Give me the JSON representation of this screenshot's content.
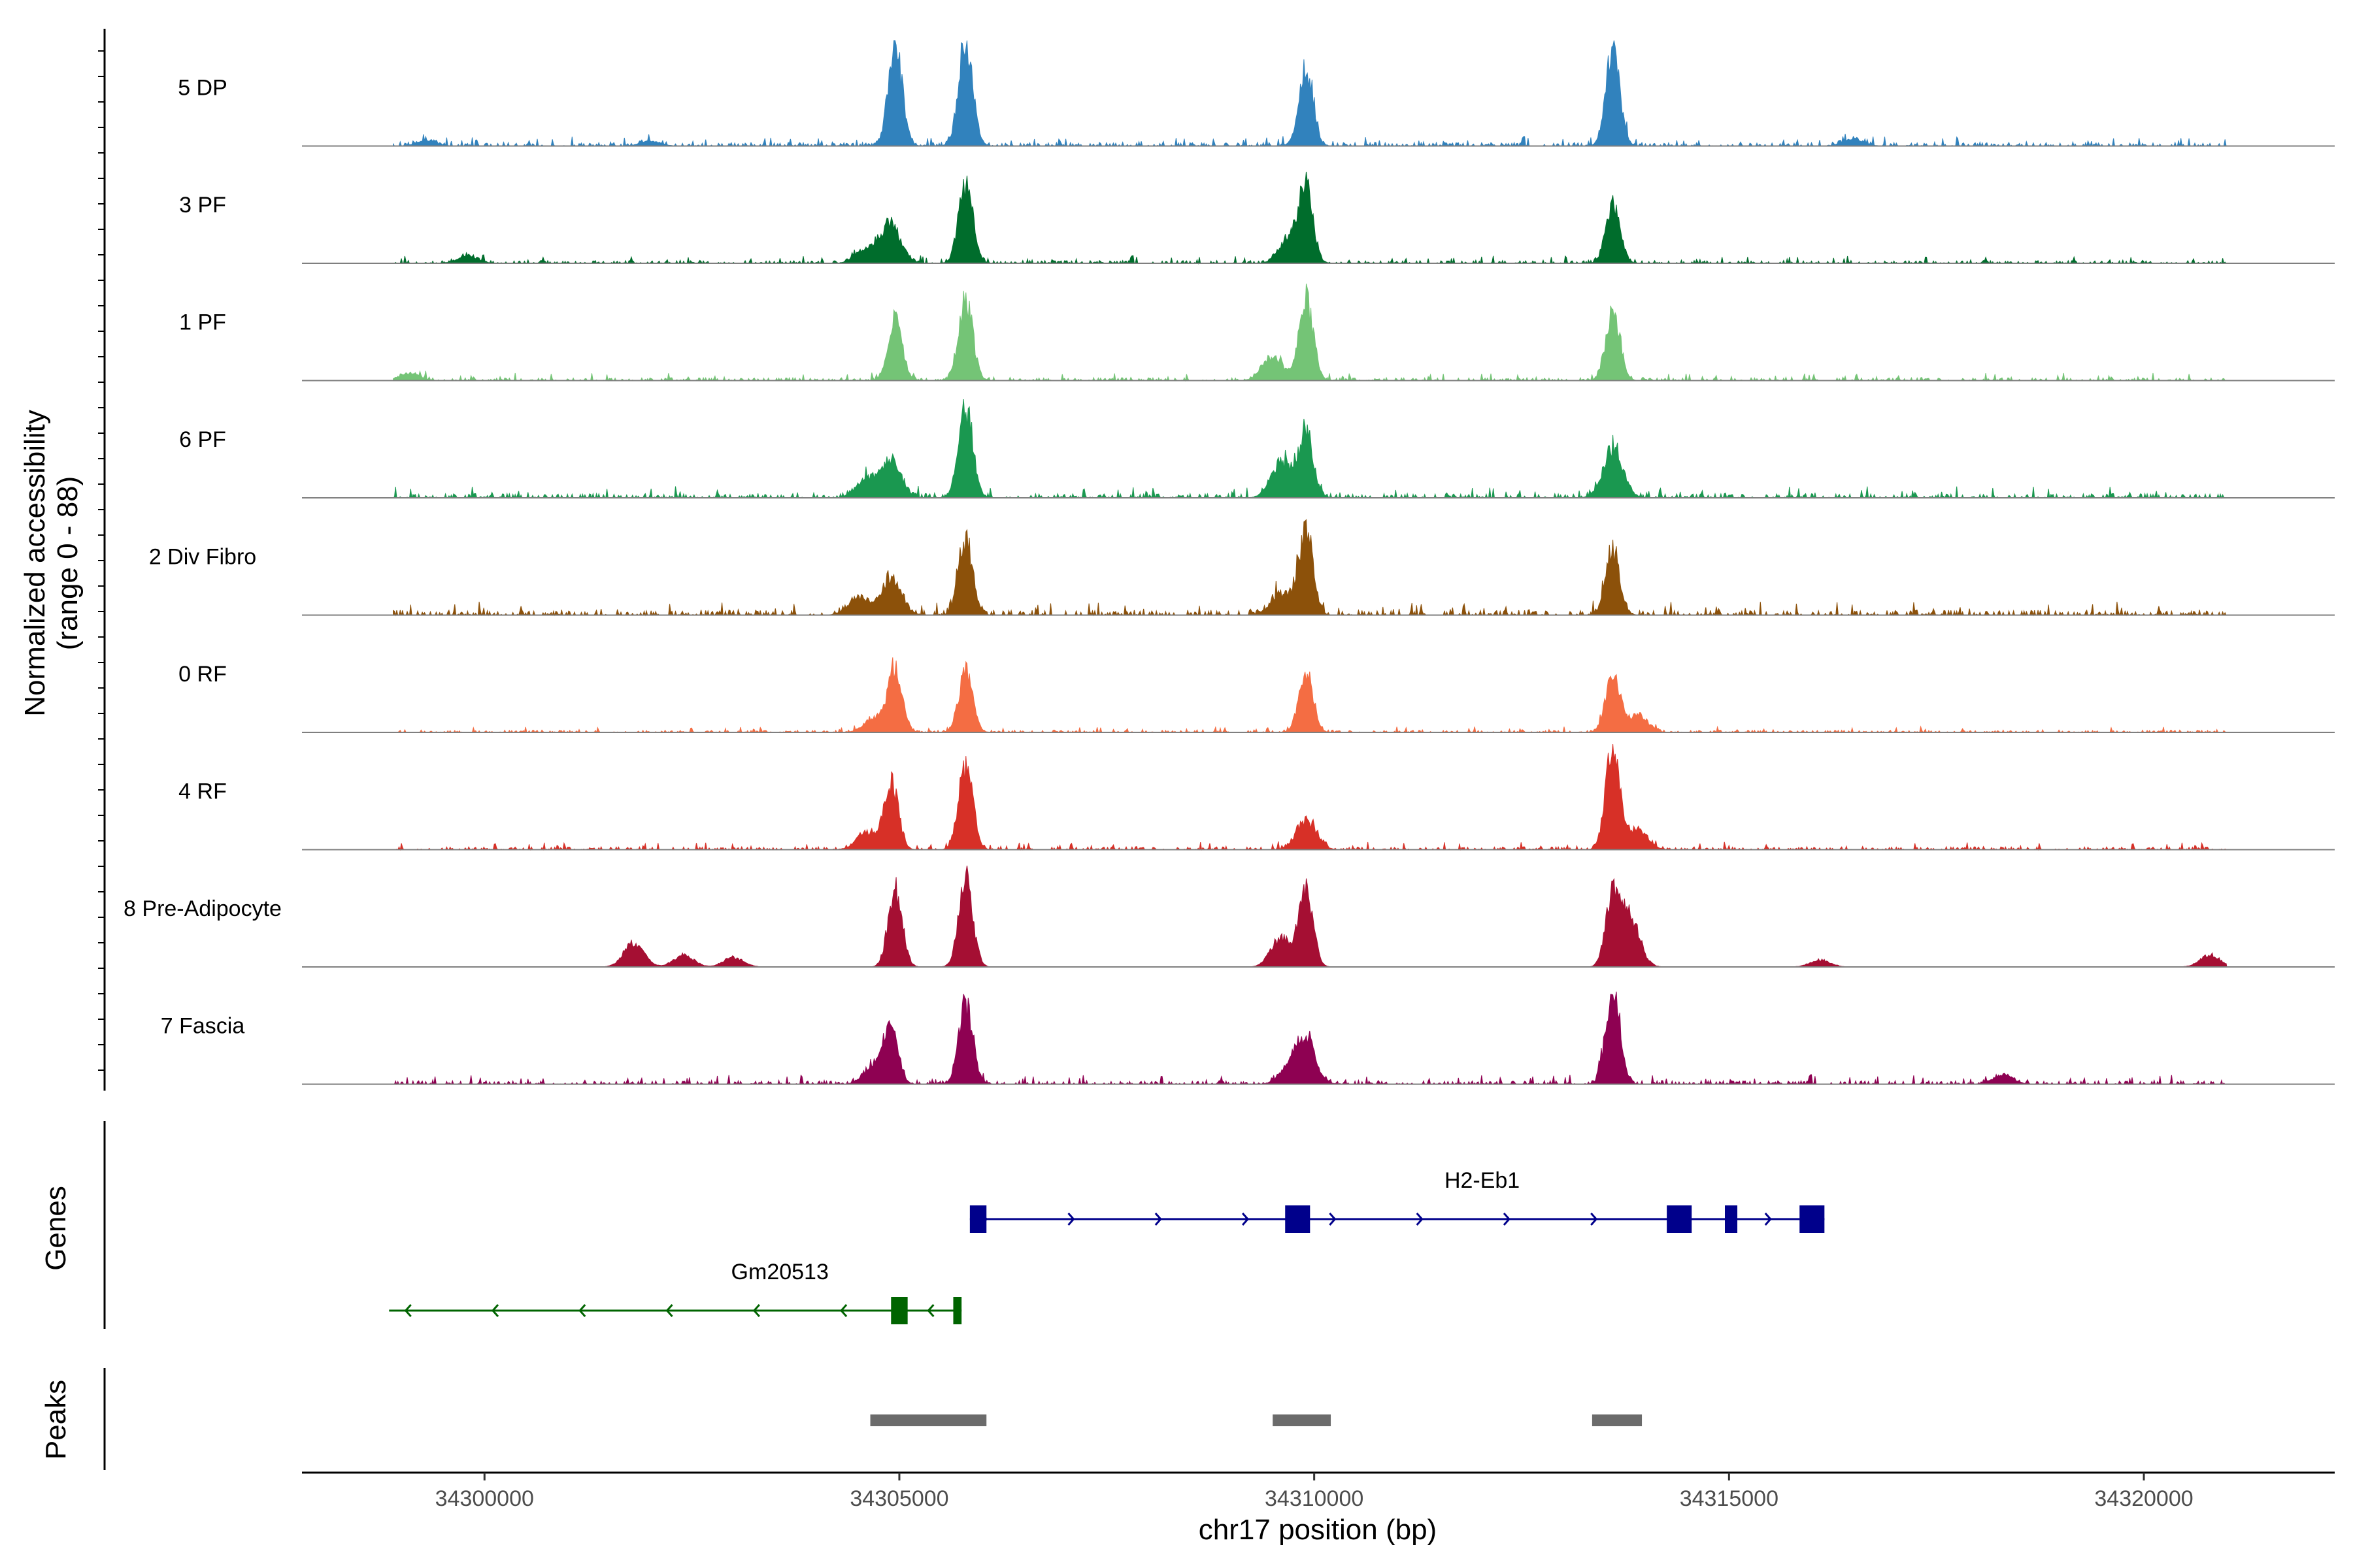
{
  "chart_data": {
    "type": "area",
    "title": "",
    "xlabel": "chr17 position (bp)",
    "ylabel_line1": "Normalized accessibility",
    "ylabel_line2": "(range 0 - 88)",
    "ylim": [
      0,
      88
    ],
    "xlim": [
      34297800,
      34322300
    ],
    "x_ticks": [
      34300000,
      34305000,
      34310000,
      34315000,
      34320000
    ],
    "x_tick_labels": [
      "34300000",
      "34305000",
      "34310000",
      "34315000",
      "34320000"
    ],
    "tracks": [
      {
        "name": "5 DP",
        "color": "#3182BD",
        "peaks": [
          [
            34304950,
            82
          ],
          [
            34305800,
            88
          ],
          [
            34309900,
            66
          ],
          [
            34313600,
            78
          ],
          [
            34299300,
            4
          ],
          [
            34302000,
            4
          ],
          [
            34316500,
            6
          ]
        ],
        "noise": 5,
        "range": [
          34298900,
          34321000
        ]
      },
      {
        "name": "3 PF",
        "color": "#006D2C",
        "peaks": [
          [
            34304900,
            32
          ],
          [
            34305800,
            66
          ],
          [
            34309900,
            60
          ],
          [
            34313600,
            48
          ],
          [
            34304600,
            12
          ],
          [
            34309700,
            20
          ],
          [
            34299800,
            6
          ]
        ],
        "noise": 4,
        "range": [
          34298900,
          34321000
        ]
      },
      {
        "name": "1 PF",
        "color": "#74C476",
        "peaks": [
          [
            34304950,
            50
          ],
          [
            34305800,
            66
          ],
          [
            34309900,
            68
          ],
          [
            34313600,
            58
          ],
          [
            34309500,
            20
          ],
          [
            34299100,
            6
          ]
        ],
        "noise": 4,
        "range": [
          34298900,
          34321000
        ]
      },
      {
        "name": "6 PF",
        "color": "#1A9850",
        "peaks": [
          [
            34304900,
            30
          ],
          [
            34305800,
            74
          ],
          [
            34309900,
            54
          ],
          [
            34313600,
            40
          ],
          [
            34304600,
            16
          ],
          [
            34309600,
            30
          ]
        ],
        "noise": 6,
        "range": [
          34298900,
          34321000
        ]
      },
      {
        "name": "2 Div Fibro",
        "color": "#8C510A",
        "peaks": [
          [
            34304900,
            30
          ],
          [
            34305800,
            62
          ],
          [
            34309900,
            70
          ],
          [
            34313600,
            52
          ],
          [
            34304500,
            14
          ],
          [
            34309600,
            18
          ]
        ],
        "noise": 7,
        "range": [
          34298900,
          34321000
        ]
      },
      {
        "name": "0 RF",
        "color": "#F46D43",
        "peaks": [
          [
            34304950,
            52
          ],
          [
            34305800,
            50
          ],
          [
            34309900,
            50
          ],
          [
            34313600,
            50
          ],
          [
            34304700,
            12
          ],
          [
            34313900,
            14
          ]
        ],
        "noise": 3,
        "range": [
          34298900,
          34321000
        ]
      },
      {
        "name": "4 RF",
        "color": "#D73027",
        "peaks": [
          [
            34304900,
            56
          ],
          [
            34305800,
            70
          ],
          [
            34309900,
            24
          ],
          [
            34313600,
            84
          ],
          [
            34304600,
            14
          ],
          [
            34313900,
            16
          ]
        ],
        "noise": 4,
        "range": [
          34298900,
          34321000
        ]
      },
      {
        "name": "8 Pre-Adipocyte",
        "color": "#A50F33",
        "peaks": [
          [
            34304950,
            64
          ],
          [
            34305800,
            72
          ],
          [
            34309900,
            66
          ],
          [
            34313600,
            56
          ],
          [
            34309600,
            24
          ],
          [
            34313800,
            40
          ],
          [
            34301800,
            20
          ],
          [
            34302400,
            10
          ],
          [
            34303000,
            8
          ],
          [
            34320800,
            10
          ],
          [
            34316100,
            6
          ]
        ],
        "noise": 0,
        "range": [
          34298900,
          34321000
        ]
      },
      {
        "name": "7 Fascia",
        "color": "#8E0152",
        "peaks": [
          [
            34304900,
            46
          ],
          [
            34305800,
            66
          ],
          [
            34309900,
            34
          ],
          [
            34313600,
            80
          ],
          [
            34304700,
            16
          ],
          [
            34309700,
            12
          ],
          [
            34318300,
            8
          ]
        ],
        "noise": 5,
        "range": [
          34298900,
          34321000
        ]
      }
    ],
    "genes_panel_label": "Genes",
    "genes": [
      {
        "name": "H2-Eb1",
        "color": "#00008B",
        "strand": "+",
        "start": 34305850,
        "end": 34316150,
        "exons": [
          [
            34305850,
            34306050
          ],
          [
            34309650,
            34309950
          ],
          [
            34314250,
            34314550
          ],
          [
            34314950,
            34315100
          ],
          [
            34315850,
            34316150
          ]
        ]
      },
      {
        "name": "Gm20513",
        "color": "#006400",
        "strand": "-",
        "start": 34298850,
        "end": 34305750,
        "exons": [
          [
            34304900,
            34305100
          ],
          [
            34305650,
            34305750
          ]
        ]
      }
    ],
    "peaks_panel_label": "Peaks",
    "peaks": [
      [
        34304650,
        34306050
      ],
      [
        34309500,
        34310200
      ],
      [
        34313350,
        34313950
      ]
    ]
  }
}
